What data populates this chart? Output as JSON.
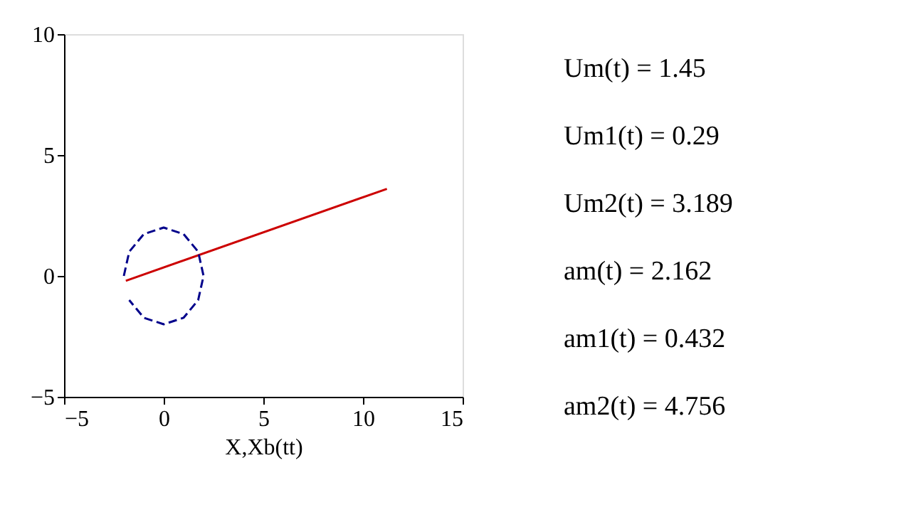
{
  "chart_data": {
    "type": "line",
    "xlabel": "X,Xb(tt)",
    "xlim": [
      -5,
      15
    ],
    "xticks": [
      -5,
      0,
      5,
      10,
      15
    ],
    "ylim": [
      -5,
      10
    ],
    "yticks": [
      -5,
      0,
      5,
      10
    ],
    "grid": false,
    "marker": "none",
    "series": [
      {
        "color": "#cc0000",
        "line_style": "solid",
        "x": [
          -1.9,
          11.2
        ],
        "values": [
          -0.2,
          3.6
        ]
      },
      {
        "color": "#00008b",
        "line_style": "dashed",
        "x": [
          -2,
          -1.73,
          -1,
          0,
          1,
          1.73,
          2,
          1.73,
          1,
          0,
          -1,
          -1.73
        ],
        "values": [
          0,
          1,
          1.73,
          2,
          1.73,
          1,
          0,
          -1,
          -1.73,
          -2,
          -1.73,
          -1
        ]
      }
    ],
    "annotations": [
      "Um(t) = 1.45",
      "Um1(t) = 0.29",
      "Um2(t) = 3.189",
      "am(t) = 2.162",
      "am1(t) = 0.432",
      "am2(t) = 4.756"
    ]
  }
}
